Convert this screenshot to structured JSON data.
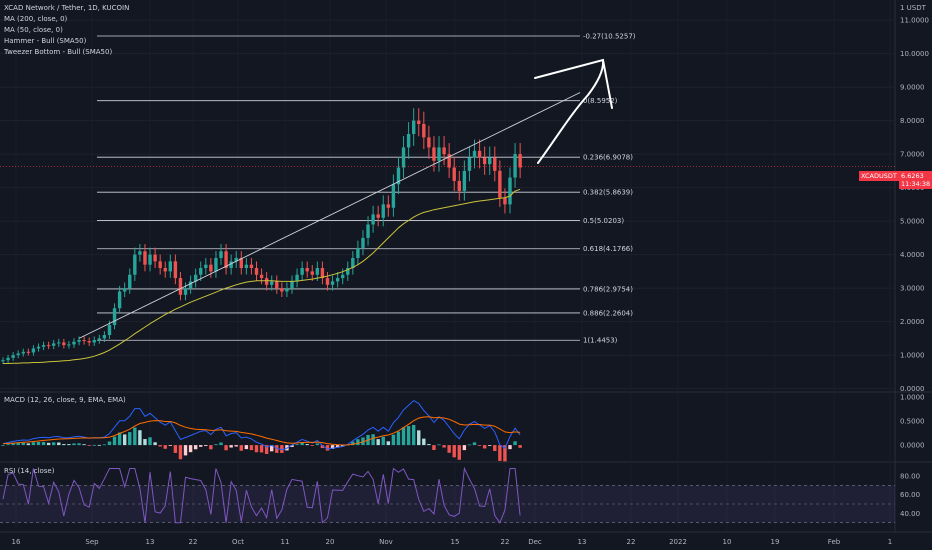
{
  "header": {
    "title": "XCAD Network / Tether, 1D, KUCOIN",
    "indicators": [
      "MA (200, close, 0)",
      "MA (50, close, 0)",
      "Hammer - Bull (SMA50)",
      "Tweezer Bottom - Bull (SMA50)"
    ]
  },
  "currency_label": "1 USDT",
  "last_price": {
    "symbol": "XCADUSDT",
    "value": "6.6263",
    "countdown": "11:34:38"
  },
  "macd_label": "MACD (12, 26, close, 9, EMA, EMA)",
  "rsi_label": "RSI (14, close)",
  "colors": {
    "up": "#26a69a",
    "down": "#ef5350",
    "ma": "#c9c23a",
    "macd": "#2962ff",
    "signal": "#ff6d00",
    "rsi": "#7e57c2"
  },
  "chart_data": {
    "type": "candlestick",
    "price_axis": {
      "ylim": [
        -0.1,
        11.6
      ],
      "ticks": [
        "11.0000",
        "10.0000",
        "9.0000",
        "8.0000",
        "7.0000",
        "6.0000",
        "5.0000",
        "4.0000",
        "3.0000",
        "2.0000",
        "1.0000",
        "0.0000"
      ]
    },
    "time_axis": {
      "ticks": [
        "16",
        "Sep",
        "13",
        "22",
        "Oct",
        "11",
        "20",
        "Nov",
        "15",
        "22",
        "Dec",
        "13",
        "22",
        "2022",
        "10",
        "19",
        "Feb",
        "1"
      ]
    },
    "fib_levels": [
      {
        "label": "-0.27(10.5257)",
        "value": 10.5257
      },
      {
        "label": "0(8.5952)",
        "value": 8.5952
      },
      {
        "label": "0.236(6.9078)",
        "value": 6.9078
      },
      {
        "label": "0.382(5.8639)",
        "value": 5.8639
      },
      {
        "label": "0.5(5.0203)",
        "value": 5.0203
      },
      {
        "label": "0.618(4.1766)",
        "value": 4.1766
      },
      {
        "label": "0.786(2.9754)",
        "value": 2.9754
      },
      {
        "label": "0.886(2.2604)",
        "value": 2.2604
      },
      {
        "label": "1(1.4453)",
        "value": 1.4453
      }
    ],
    "closes": [
      0.85,
      0.92,
      1.0,
      1.05,
      1.1,
      1.08,
      1.2,
      1.25,
      1.3,
      1.28,
      1.35,
      1.38,
      1.3,
      1.32,
      1.4,
      1.45,
      1.42,
      1.38,
      1.45,
      1.5,
      1.6,
      1.9,
      2.4,
      2.9,
      3.0,
      3.4,
      4.0,
      4.1,
      3.7,
      4.0,
      3.8,
      3.6,
      3.5,
      3.8,
      3.3,
      2.8,
      3.0,
      3.2,
      3.4,
      3.6,
      3.7,
      3.5,
      3.9,
      4.1,
      3.6,
      3.8,
      3.9,
      3.6,
      3.7,
      3.6,
      3.4,
      3.3,
      3.1,
      3.2,
      3.0,
      2.9,
      3.0,
      3.2,
      3.4,
      3.6,
      3.5,
      3.4,
      3.6,
      3.3,
      3.1,
      3.2,
      3.3,
      3.4,
      3.6,
      3.9,
      4.2,
      4.5,
      4.9,
      5.2,
      5.1,
      5.5,
      5.4,
      6.1,
      6.6,
      7.2,
      7.6,
      8.0,
      7.9,
      7.5,
      7.2,
      6.8,
      7.2,
      7.0,
      6.6,
      6.2,
      5.9,
      6.5,
      6.9,
      7.1,
      6.9,
      6.7,
      6.9,
      6.5,
      5.7,
      5.5,
      6.3,
      7.0,
      6.6
    ],
    "ma50": [
      0.75,
      0.75,
      0.76,
      0.76,
      0.77,
      0.77,
      0.78,
      0.78,
      0.79,
      0.8,
      0.81,
      0.82,
      0.83,
      0.84,
      0.86,
      0.88,
      0.9,
      0.93,
      0.97,
      1.02,
      1.08,
      1.15,
      1.24,
      1.33,
      1.43,
      1.53,
      1.64,
      1.74,
      1.84,
      1.94,
      2.03,
      2.12,
      2.21,
      2.29,
      2.37,
      2.44,
      2.51,
      2.58,
      2.64,
      2.7,
      2.76,
      2.82,
      2.88,
      2.94,
      3.0,
      3.05,
      3.1,
      3.14,
      3.18,
      3.2,
      3.22,
      3.22,
      3.22,
      3.22,
      3.21,
      3.2,
      3.2,
      3.2,
      3.21,
      3.23,
      3.25,
      3.27,
      3.3,
      3.33,
      3.36,
      3.4,
      3.44,
      3.49,
      3.55,
      3.62,
      3.7,
      3.8,
      3.92,
      4.05,
      4.2,
      4.35,
      4.5,
      4.65,
      4.8,
      4.92,
      5.02,
      5.12,
      5.2,
      5.26,
      5.3,
      5.34,
      5.37,
      5.4,
      5.43,
      5.46,
      5.49,
      5.52,
      5.55,
      5.58,
      5.6,
      5.62,
      5.64,
      5.66,
      5.68,
      5.7,
      5.75,
      5.9,
      5.95
    ],
    "trendline": [
      [
        15,
        1.5
      ],
      [
        102,
        8.6
      ]
    ],
    "macd": {
      "ylim": [
        -0.35,
        1.1
      ],
      "ticks": [
        "1.0000",
        "0.5000",
        "0.0000"
      ]
    },
    "rsi": {
      "ylim": [
        20,
        95
      ],
      "ticks": [
        "80.00",
        "60.00",
        "40.00"
      ],
      "band": [
        30,
        70
      ]
    }
  }
}
